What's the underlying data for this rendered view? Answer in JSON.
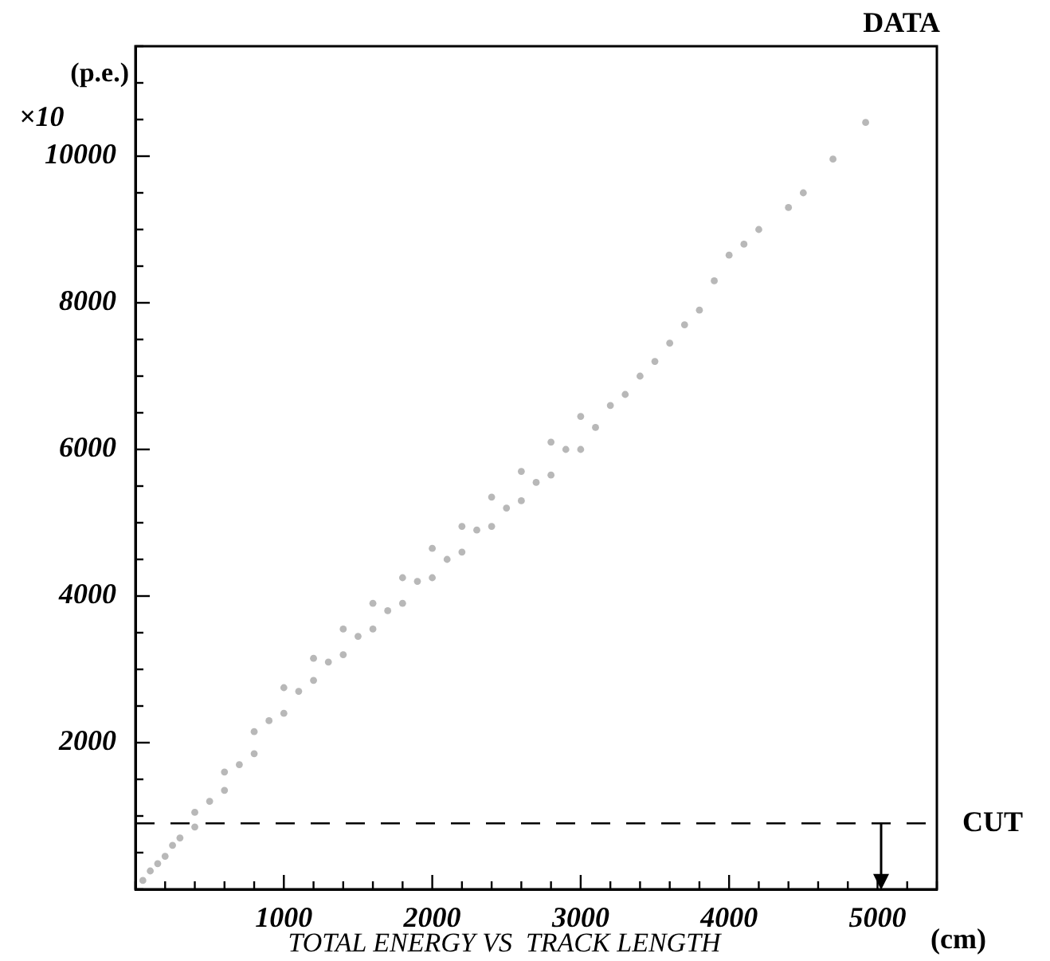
{
  "chart_data": {
    "type": "scatter",
    "title": "DATA",
    "xlabel": "(cm)",
    "ylabel": "(p.e.)",
    "annotations": [
      "×10",
      "TOTAL ENERGY VS  TRACK LENGTH"
    ],
    "xlim": [
      0,
      5400
    ],
    "xticks": [
      {
        "value": 0,
        "label": null
      },
      {
        "value": 200,
        "label": null
      },
      {
        "value": 400,
        "label": null
      },
      {
        "value": 600,
        "label": null
      },
      {
        "value": 800,
        "label": null
      },
      1000,
      {
        "value": 1200,
        "label": null
      },
      {
        "value": 1400,
        "label": null
      },
      {
        "value": 1600,
        "label": null
      },
      {
        "value": 1800,
        "label": null
      },
      2000,
      {
        "value": 2200,
        "label": null
      },
      {
        "value": 2400,
        "label": null
      },
      {
        "value": 2600,
        "label": null
      },
      {
        "value": 2800,
        "label": null
      },
      3000,
      {
        "value": 3200,
        "label": null
      },
      {
        "value": 3400,
        "label": null
      },
      {
        "value": 3600,
        "label": null
      },
      {
        "value": 3800,
        "label": null
      },
      4000,
      {
        "value": 4200,
        "label": null
      },
      {
        "value": 4400,
        "label": null
      },
      {
        "value": 4600,
        "label": null
      },
      {
        "value": 4800,
        "label": null
      },
      5000,
      {
        "value": 5200,
        "label": null
      },
      {
        "value": 5400,
        "label": null
      }
    ],
    "ylim": [
      0,
      11500
    ],
    "yticks": [
      {
        "value": 0,
        "label": null
      },
      {
        "value": 500,
        "label": null
      },
      {
        "value": 1000,
        "label": null
      },
      {
        "value": 1500,
        "label": null
      },
      2000,
      {
        "value": 2500,
        "label": null
      },
      {
        "value": 3000,
        "label": null
      },
      {
        "value": 3500,
        "label": null
      },
      4000,
      {
        "value": 4500,
        "label": null
      },
      {
        "value": 5000,
        "label": null
      },
      {
        "value": 5500,
        "label": null
      },
      6000,
      {
        "value": 6500,
        "label": null
      },
      {
        "value": 7000,
        "label": null
      },
      {
        "value": 7500,
        "label": null
      },
      8000,
      {
        "value": 8500,
        "label": null
      },
      {
        "value": 9000,
        "label": null
      },
      {
        "value": 9500,
        "label": null
      },
      10000,
      {
        "value": 10500,
        "label": null
      },
      {
        "value": 11000,
        "label": null
      },
      {
        "value": 11500,
        "label": null
      }
    ],
    "marker": "circle",
    "ref_lines": [
      {
        "axis": "y",
        "value": 900,
        "label": "CUT",
        "line_style": "dashed",
        "color": "#000000"
      }
    ],
    "series": [
      {
        "color": "#b8b8b8",
        "x": [
          50,
          100,
          150,
          200,
          250,
          300,
          400,
          400,
          500,
          600,
          600,
          700,
          800,
          800,
          900,
          1000,
          1000,
          1100,
          1200,
          1200,
          1300,
          1400,
          1400,
          1500,
          1600,
          1600,
          1700,
          1800,
          1800,
          1900,
          2000,
          2000,
          2100,
          2200,
          2200,
          2300,
          2400,
          2400,
          2500,
          2600,
          2600,
          2700,
          2800,
          2800,
          2900,
          3000,
          3000,
          3100,
          3200,
          3300,
          3400,
          3500,
          3600,
          3700,
          3800,
          3900,
          4000,
          4100,
          4200,
          4400,
          4500,
          4700,
          4920
        ],
        "values": [
          120,
          250,
          350,
          450,
          600,
          700,
          850,
          1050,
          1200,
          1350,
          1600,
          1700,
          1850,
          2150,
          2300,
          2400,
          2750,
          2700,
          2850,
          3150,
          3100,
          3200,
          3550,
          3450,
          3550,
          3900,
          3800,
          3900,
          4250,
          4200,
          4250,
          4650,
          4500,
          4600,
          4950,
          4900,
          4950,
          5350,
          5200,
          5300,
          5700,
          5550,
          5650,
          6100,
          6000,
          6000,
          6450,
          6300,
          6600,
          6750,
          7000,
          7200,
          7450,
          7700,
          7900,
          8300,
          8650,
          8800,
          9000,
          9300,
          9500,
          9960,
          10460
        ]
      }
    ]
  }
}
